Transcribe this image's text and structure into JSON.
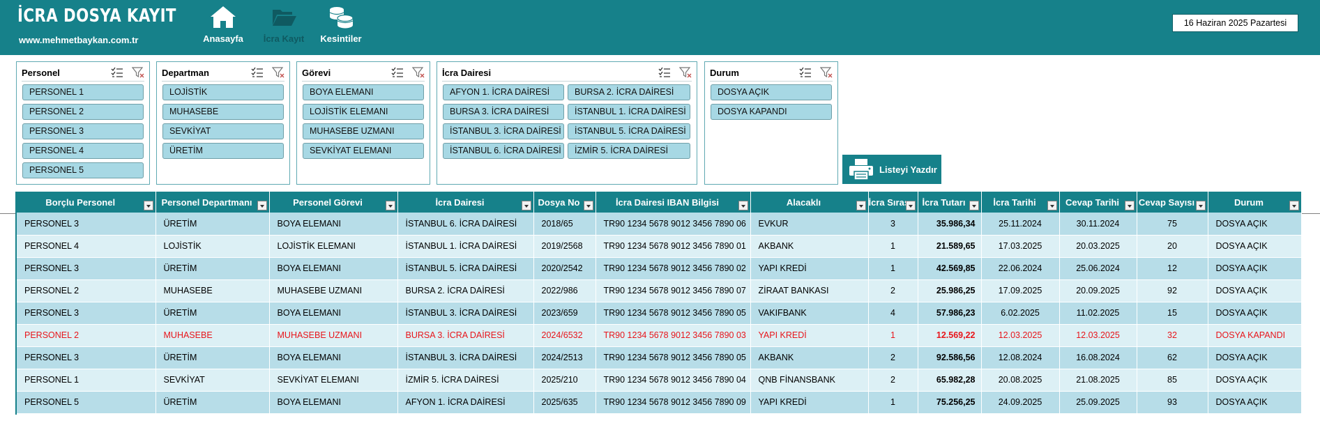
{
  "header": {
    "title": "İCRA DOSYA KAYIT",
    "url": "www.mehmetbaykan.com.tr",
    "nav": [
      {
        "label": "Anasayfa",
        "icon": "home-icon"
      },
      {
        "label": "İcra Kayıt",
        "icon": "folder-icon"
      },
      {
        "label": "Kesintiler",
        "icon": "coins-icon"
      }
    ],
    "date": "16 Haziran 2025 Pazartesi"
  },
  "slicers": [
    {
      "title": "Personel",
      "items": [
        "PERSONEL 1",
        "PERSONEL 2",
        "PERSONEL 3",
        "PERSONEL 4",
        "PERSONEL 5"
      ]
    },
    {
      "title": "Departman",
      "items": [
        "LOJİSTİK",
        "MUHASEBE",
        "SEVKİYAT",
        "ÜRETİM"
      ]
    },
    {
      "title": "Görevi",
      "items": [
        "BOYA ELEMANI",
        "LOJİSTİK ELEMANI",
        "MUHASEBE UZMANI",
        "SEVKİYAT ELEMANI"
      ]
    },
    {
      "title": "İcra Dairesi",
      "items": [
        "AFYON 1. İCRA DAİRESİ",
        "BURSA 2. İCRA DAİRESİ",
        "BURSA 3. İCRA DAİRESİ",
        "İSTANBUL 1. İCRA DAİRESİ",
        "İSTANBUL 3. İCRA DAİRESİ",
        "İSTANBUL 5. İCRA DAİRESİ",
        "İSTANBUL 6. İCRA DAİRESİ",
        "İZMİR 5. İCRA DAİRESİ"
      ]
    },
    {
      "title": "Durum",
      "items": [
        "DOSYA AÇIK",
        "DOSYA KAPANDI"
      ]
    }
  ],
  "print_button": {
    "label": "Listeyi Yazdır"
  },
  "table": {
    "columns": [
      "Borçlu Personel",
      "Personel Departmanı",
      "Personel Görevi",
      "İcra Dairesi",
      "Dosya No",
      "İcra Dairesi IBAN Bilgisi",
      "Alacaklı",
      "İcra Sırası",
      "İcra Tutarı",
      "İcra Tarihi",
      "Cevap Tarihi",
      "Cevap Sayısı",
      "Durum"
    ],
    "rows": [
      [
        "PERSONEL 3",
        "ÜRETİM",
        "BOYA ELEMANI",
        "İSTANBUL 6. İCRA DAİRESİ",
        "2018/65",
        "TR90 1234 5678 9012 3456 7890 06",
        "EVKUR",
        "3",
        "35.986,34",
        "25.11.2024",
        "30.11.2024",
        "75",
        "DOSYA AÇIK"
      ],
      [
        "PERSONEL 4",
        "LOJİSTİK",
        "LOJİSTİK ELEMANI",
        "İSTANBUL 1. İCRA DAİRESİ",
        "2019/2568",
        "TR90 1234 5678 9012 3456 7890 01",
        "AKBANK",
        "1",
        "21.589,65",
        "17.03.2025",
        "20.03.2025",
        "20",
        "DOSYA AÇIK"
      ],
      [
        "PERSONEL 3",
        "ÜRETİM",
        "BOYA ELEMANI",
        "İSTANBUL 5. İCRA DAİRESİ",
        "2020/2542",
        "TR90 1234 5678 9012 3456 7890 02",
        "YAPI KREDİ",
        "1",
        "42.569,85",
        "22.06.2024",
        "25.06.2024",
        "12",
        "DOSYA AÇIK"
      ],
      [
        "PERSONEL 2",
        "MUHASEBE",
        "MUHASEBE UZMANI",
        "BURSA 2. İCRA DAİRESİ",
        "2022/986",
        "TR90 1234 5678 9012 3456 7890 07",
        "ZİRAAT BANKASI",
        "2",
        "25.986,25",
        "17.09.2025",
        "20.09.2025",
        "92",
        "DOSYA AÇIK"
      ],
      [
        "PERSONEL 3",
        "ÜRETİM",
        "BOYA ELEMANI",
        "İSTANBUL 3. İCRA DAİRESİ",
        "2023/659",
        "TR90 1234 5678 9012 3456 7890 05",
        "VAKIFBANK",
        "4",
        "57.986,23",
        "6.02.2025",
        "11.02.2025",
        "15",
        "DOSYA AÇIK"
      ],
      [
        "PERSONEL 2",
        "MUHASEBE",
        "MUHASEBE UZMANI",
        "BURSA 3. İCRA DAİRESİ",
        "2024/6532",
        "TR90 1234 5678 9012 3456 7890 03",
        "YAPI KREDİ",
        "1",
        "12.569,22",
        "12.03.2025",
        "12.03.2025",
        "32",
        "DOSYA KAPANDI"
      ],
      [
        "PERSONEL 3",
        "ÜRETİM",
        "BOYA ELEMANI",
        "İSTANBUL 3. İCRA DAİRESİ",
        "2024/2513",
        "TR90 1234 5678 9012 3456 7890 05",
        "AKBANK",
        "2",
        "92.586,56",
        "12.08.2024",
        "16.08.2024",
        "62",
        "DOSYA AÇIK"
      ],
      [
        "PERSONEL 1",
        "SEVKİYAT",
        "SEVKİYAT ELEMANI",
        "İZMİR 5. İCRA DAİRESİ",
        "2025/210",
        "TR90 1234 5678 9012 3456 7890 04",
        "QNB FİNANSBANK",
        "2",
        "65.982,28",
        "20.08.2025",
        "21.08.2025",
        "85",
        "DOSYA AÇIK"
      ],
      [
        "PERSONEL 5",
        "ÜRETİM",
        "BOYA ELEMANI",
        "AFYON 1. İCRA DAİRESİ",
        "2025/635",
        "TR90 1234 5678 9012 3456 7890 09",
        "YAPI KREDİ",
        "1",
        "75.256,25",
        "24.09.2025",
        "25.09.2025",
        "93",
        "DOSYA AÇIK"
      ]
    ]
  },
  "colors": {
    "header_bg": "#16818a",
    "row_odd": "#b7dde8",
    "row_even": "#dcf0f5",
    "closed_text": "#e8151b"
  }
}
